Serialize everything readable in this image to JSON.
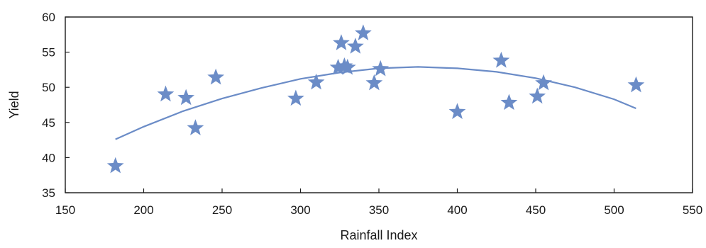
{
  "chart_data": {
    "type": "scatter",
    "xlabel": "Rainfall Index",
    "ylabel": "Yield",
    "xlim": [
      150,
      550
    ],
    "ylim": [
      35,
      60
    ],
    "xticks": [
      150,
      200,
      250,
      300,
      350,
      400,
      450,
      500,
      550
    ],
    "yticks": [
      35,
      40,
      45,
      50,
      55,
      60
    ],
    "grid": false,
    "legend": "none",
    "marker_color": "#6b8cc7",
    "line_color": "#6b8cc7",
    "series": [
      {
        "kind": "points",
        "marker": "star",
        "x": [
          182,
          214,
          227,
          233,
          246,
          297,
          310,
          324,
          326,
          328,
          330,
          335,
          340,
          347,
          351,
          400,
          428,
          433,
          451,
          455,
          514
        ],
        "y": [
          38.8,
          49.0,
          48.5,
          44.2,
          51.4,
          48.4,
          50.7,
          52.8,
          56.3,
          53.0,
          52.8,
          55.8,
          57.7,
          50.6,
          52.6,
          46.5,
          53.8,
          47.8,
          48.7,
          50.6,
          50.3
        ]
      },
      {
        "kind": "fit-line",
        "x": [
          182,
          200,
          225,
          250,
          275,
          300,
          325,
          350,
          375,
          400,
          425,
          450,
          475,
          500,
          514
        ],
        "y": [
          42.6,
          44.4,
          46.6,
          48.4,
          49.9,
          51.2,
          52.1,
          52.7,
          52.9,
          52.7,
          52.2,
          51.3,
          50.0,
          48.3,
          47.0
        ]
      }
    ]
  }
}
